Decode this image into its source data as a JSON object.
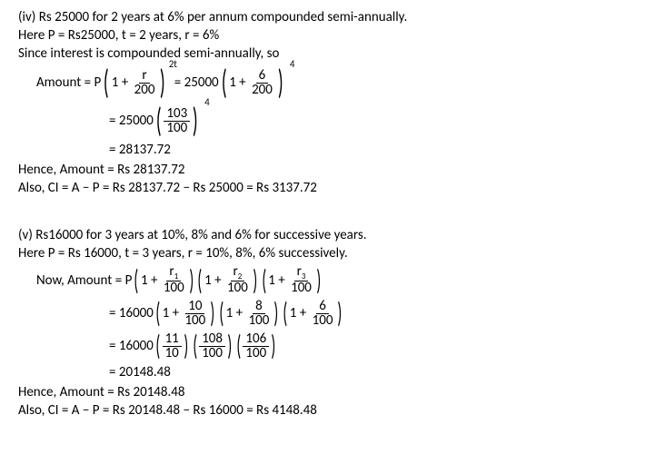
{
  "iv": {
    "heading": "(iv) Rs 25000 for 2 years at 6% per annum compounded semi-annually.",
    "given": "Here P = Rs25000, t = 2 years, r = 6%",
    "note": "Since interest is compounded semi-annually, so",
    "amt_label": "Amount = P",
    "one": "1 +",
    "r": "r",
    "two_hundred": "200",
    "pow_2t": "2t",
    "eq1": "= 25000",
    "six": "6",
    "pow_4": "4",
    "eq2": "= 25000",
    "n103": "103",
    "n100": "100",
    "result": "= 28137.72",
    "hence": "Hence, Amount = Rs 28137.72",
    "ci": "Also, CI = A − P = Rs 28137.72 − Rs 25000 = Rs 3137.72"
  },
  "v": {
    "heading": "(v) Rs16000 for 3 years at 10%, 8% and 6% for successive years.",
    "given": "Here P = Rs 16000, t = 3 years, r = 10%, 8%, 6% successively.",
    "now": "Now,  Amount = P",
    "one": "1 +",
    "r1n": "r",
    "r1s": "1",
    "r2n": "r",
    "r2s": "2",
    "r3n": "r",
    "r3s": "3",
    "n100": "100",
    "eq1": "= 16000",
    "ten": "10",
    "eight": "8",
    "six": "6",
    "eq2": "= 16000",
    "n11": "11",
    "n10": "10",
    "n108": "108",
    "n106": "106",
    "result": "= 20148.48",
    "hence": "Hence, Amount = Rs 20148.48",
    "ci": "Also, CI = A − P = Rs 20148.48 − Rs 16000 = Rs 4148.48"
  }
}
